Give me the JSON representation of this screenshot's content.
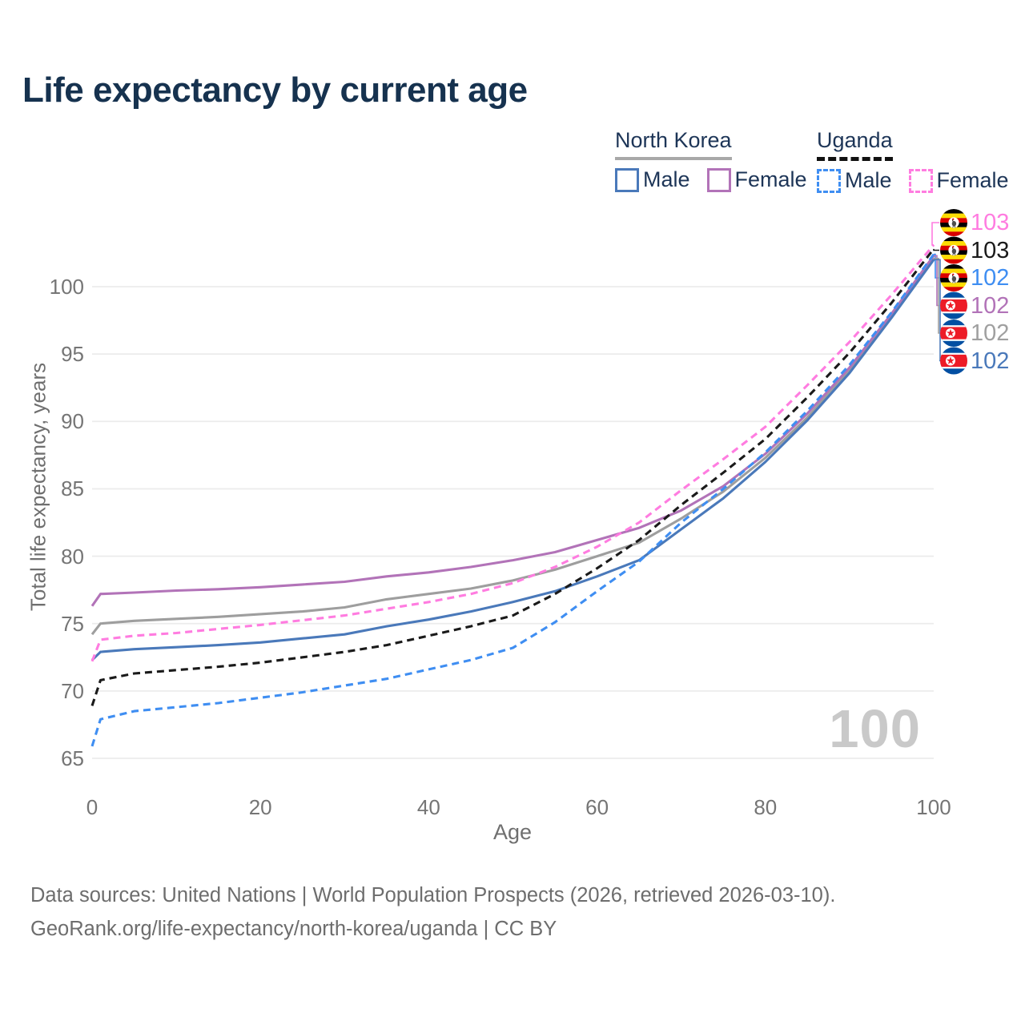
{
  "title": "Life expectancy by current age",
  "legend": {
    "groups": [
      {
        "label": "North Korea",
        "line_color": "#a8a8a8",
        "line_style": "solid",
        "items": [
          {
            "label": "Male",
            "color": "#4a79ba",
            "style": "solid"
          },
          {
            "label": "Female",
            "color": "#b273b8",
            "style": "solid"
          }
        ]
      },
      {
        "label": "Uganda",
        "line_color": "#111111",
        "line_style": "dashed",
        "items": [
          {
            "label": "Male",
            "color": "#3f8ef2",
            "style": "dashed"
          },
          {
            "label": "Female",
            "color": "#ff7ce0",
            "style": "dashed"
          }
        ]
      }
    ]
  },
  "chart_data": {
    "type": "line",
    "title": "Life expectancy by current age",
    "xlabel": "Age",
    "ylabel": "Total life expectancy, years",
    "xlim": [
      0,
      100
    ],
    "ylim": [
      65,
      103.5
    ],
    "xticks": [
      0,
      20,
      40,
      60,
      80,
      100
    ],
    "yticks": [
      65,
      70,
      75,
      80,
      85,
      90,
      95,
      100
    ],
    "grid": "horizontal",
    "legend_position": "top-right",
    "age_watermark": "100",
    "x": [
      0,
      1,
      5,
      10,
      15,
      20,
      25,
      30,
      35,
      40,
      45,
      50,
      55,
      60,
      65,
      70,
      75,
      80,
      85,
      90,
      95,
      100
    ],
    "series": [
      {
        "name": "North Korea",
        "sex": "Both",
        "color": "#9e9e9e",
        "dashed": false,
        "values": [
          74.2,
          75.0,
          75.2,
          75.35,
          75.5,
          75.7,
          75.9,
          76.2,
          76.8,
          77.2,
          77.6,
          78.2,
          79.0,
          80.0,
          81.0,
          82.8,
          84.8,
          87.3,
          90.3,
          93.8,
          97.9,
          102.1
        ]
      },
      {
        "name": "North Korea Female",
        "sex": "Female",
        "color": "#b273b8",
        "dashed": false,
        "values": [
          76.3,
          77.2,
          77.3,
          77.45,
          77.55,
          77.7,
          77.9,
          78.1,
          78.5,
          78.8,
          79.2,
          79.7,
          80.3,
          81.2,
          82.1,
          83.4,
          85.2,
          87.6,
          90.6,
          94.0,
          98.0,
          102.3
        ]
      },
      {
        "name": "North Korea Male",
        "sex": "Male",
        "color": "#4a79ba",
        "dashed": false,
        "values": [
          72.3,
          72.9,
          73.1,
          73.25,
          73.4,
          73.6,
          73.9,
          74.2,
          74.8,
          75.3,
          75.9,
          76.6,
          77.4,
          78.5,
          79.7,
          82.0,
          84.3,
          87.0,
          90.1,
          93.6,
          97.7,
          102.0
        ]
      },
      {
        "name": "Uganda",
        "sex": "Both",
        "color": "#1a1a1a",
        "dashed": true,
        "values": [
          68.9,
          70.8,
          71.3,
          71.55,
          71.8,
          72.1,
          72.5,
          72.9,
          73.4,
          74.1,
          74.8,
          75.6,
          77.2,
          79.1,
          81.2,
          83.8,
          86.2,
          88.7,
          91.8,
          95.1,
          98.8,
          102.8
        ]
      },
      {
        "name": "Uganda Female",
        "sex": "Female",
        "color": "#ff7ce0",
        "dashed": true,
        "values": [
          72.2,
          73.8,
          74.1,
          74.3,
          74.6,
          74.9,
          75.25,
          75.6,
          76.1,
          76.6,
          77.2,
          78.0,
          79.2,
          80.7,
          82.5,
          84.9,
          87.2,
          89.6,
          92.7,
          95.9,
          99.4,
          103.1
        ]
      },
      {
        "name": "Uganda Male",
        "sex": "Male",
        "color": "#3f8ef2",
        "dashed": true,
        "values": [
          65.9,
          67.9,
          68.5,
          68.8,
          69.1,
          69.5,
          69.9,
          70.4,
          70.9,
          71.6,
          72.3,
          73.2,
          75.1,
          77.4,
          79.6,
          82.5,
          85.0,
          87.7,
          90.8,
          94.2,
          98.1,
          102.4
        ]
      }
    ],
    "end_labels": [
      {
        "flag": "uganda",
        "value": "103",
        "series": "Uganda Female",
        "color": "#ff7ce0"
      },
      {
        "flag": "uganda",
        "value": "103",
        "series": "Uganda",
        "color": "#1a1a1a"
      },
      {
        "flag": "uganda",
        "value": "102",
        "series": "Uganda Male",
        "color": "#3f8ef2"
      },
      {
        "flag": "north-korea",
        "value": "102",
        "series": "North Korea Female",
        "color": "#b273b8"
      },
      {
        "flag": "north-korea",
        "value": "102",
        "series": "North Korea",
        "color": "#a0a0a0"
      },
      {
        "flag": "north-korea",
        "value": "102",
        "series": "North Korea Male",
        "color": "#4a79ba"
      }
    ]
  },
  "footer": {
    "line1": "Data sources: United Nations | World Population Prospects (2026, retrieved 2026-03-10).",
    "line2": "GeoRank.org/life-expectancy/north-korea/uganda | CC BY"
  }
}
